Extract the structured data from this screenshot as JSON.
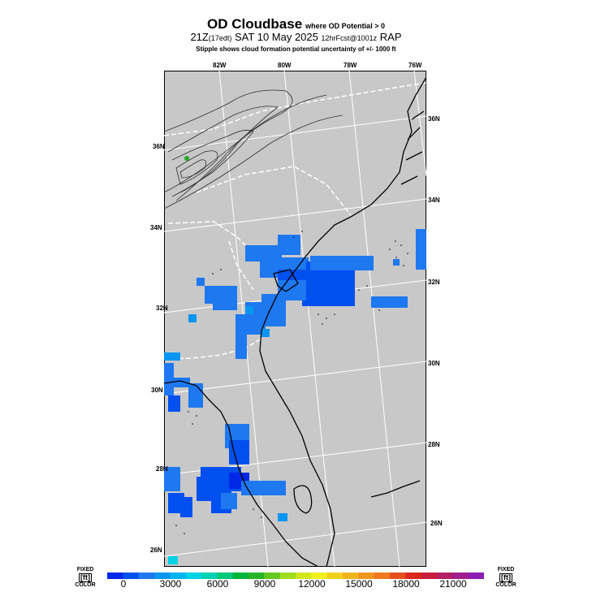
{
  "title": {
    "main": "OD Cloudbase",
    "sub": "where OD Potential > 0",
    "line2_time": "21Z",
    "line2_local": "(17edt)",
    "line2_date": "SAT 10 May 2025",
    "line2_fcst": "12hrFcst@1001z",
    "line2_model": "RAP",
    "line3": "Stipple shows cloud formation potential uncertainty of +/- 1000 ft"
  },
  "map": {
    "background_color": "#c8c8c8",
    "lon_labels_top": [
      "82W",
      "80W",
      "78W",
      "76W"
    ],
    "lat_labels_right": [
      "36N",
      "34N",
      "32N",
      "30N",
      "28N",
      "26N"
    ],
    "lat_labels_left": [
      "36N",
      "34N",
      "32N",
      "30N",
      "28N",
      "26N"
    ]
  },
  "colorbar": {
    "side_label_top": "FIXED",
    "side_label_unit": "[ft]",
    "side_label_bottom": "COLOR",
    "tick_labels": [
      "0",
      "3000",
      "6000",
      "9000",
      "12000",
      "15000",
      "18000",
      "21000"
    ],
    "colors": [
      "#0028e8",
      "#0050f0",
      "#1e78f0",
      "#0a96f0",
      "#00b4f0",
      "#00d2e6",
      "#00d2b4",
      "#00c878",
      "#00b43c",
      "#28b428",
      "#64c81e",
      "#a0dc1e",
      "#d2e61e",
      "#f0f01e",
      "#f0d21e",
      "#f0b41e",
      "#f0961e",
      "#f0781e",
      "#e6501e",
      "#dc281e",
      "#c81e3c",
      "#b41e64",
      "#a01e8c",
      "#8c1eb4"
    ]
  }
}
